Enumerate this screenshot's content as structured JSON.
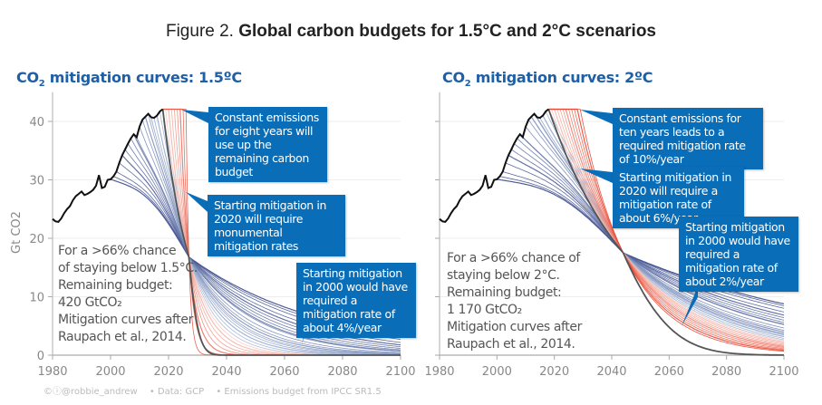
{
  "figure": {
    "title_prefix": "Figure 2. ",
    "title_bold": "Global carbon budgets for 1.5°C and 2°C scenarios"
  },
  "footer": {
    "credit": "©ⓘ@robbie_andrew",
    "data": "•  Data: GCP",
    "budget": "•  Emissions budget from IPCC SR1.5"
  },
  "colors": {
    "historical": "#111111",
    "central": "#555555",
    "early_start": "#3b4a8c",
    "mid_start": "#3a86c8",
    "late_start": "#f08070",
    "callout_bg": "#0a6db8",
    "title_blue": "#1f5fa6"
  },
  "chart_data": [
    {
      "type": "line",
      "title": "CO2 mitigation curves: 1.5°C",
      "title_parts": {
        "pre": "CO",
        "sub": "2",
        "post": " mitigation curves: 1.5ºC"
      },
      "xlabel": "",
      "ylabel": "Gt CO2",
      "xlim": [
        1980,
        2100
      ],
      "ylim": [
        0,
        42
      ],
      "xticks": [
        "1980",
        "2000",
        "2020",
        "2040",
        "2060",
        "2080",
        "2100"
      ],
      "yticks": [
        "0",
        "10",
        "20",
        "30",
        "40"
      ],
      "grid": true,
      "budget_gtco2": 420,
      "historical": {
        "x": [
          1980,
          1981,
          1982,
          1983,
          1984,
          1985,
          1986,
          1987,
          1988,
          1989,
          1990,
          1991,
          1992,
          1993,
          1994,
          1995,
          1996,
          1997,
          1998,
          1999,
          2000,
          2001,
          2002,
          2003,
          2004,
          2005,
          2006,
          2007,
          2008,
          2009,
          2010,
          2011,
          2012,
          2013,
          2014,
          2015,
          2016,
          2017,
          2018
        ],
        "y": [
          23.3,
          22.9,
          22.8,
          23.4,
          24.3,
          25.0,
          25.5,
          26.5,
          27.2,
          27.6,
          28.0,
          27.4,
          27.6,
          27.9,
          28.3,
          29.0,
          30.8,
          28.6,
          28.8,
          30.0,
          30.1,
          30.6,
          31.4,
          32.9,
          34.2,
          35.2,
          36.2,
          37.1,
          37.8,
          37.3,
          39.1,
          40.3,
          40.8,
          41.3,
          40.7,
          40.6,
          41.0,
          41.7,
          42.1
        ]
      },
      "crossing": {
        "year": 2027,
        "value": 16.8
      },
      "callouts": [
        "Constant emissions for eight years will use up the remaining carbon budget",
        "Starting mitigation in 2020 will require monumental mitigation rates",
        "Starting mitigation in 2000 would have required a mitigation rate of about 4%/year"
      ],
      "note": "For a >66% chance\nof staying below 1.5°C.\nRemaining budget:\n420 GtCO₂\nMitigation curves after\nRaupach et al., 2014.",
      "mitigation_start_years": [
        2000,
        2001,
        2002,
        2003,
        2004,
        2005,
        2006,
        2007,
        2008,
        2009,
        2010,
        2011,
        2012,
        2013,
        2014,
        2015,
        2016,
        2017,
        2018,
        2019,
        2020,
        2021,
        2022,
        2023,
        2024,
        2025,
        2026,
        2027
      ]
    },
    {
      "type": "line",
      "title": "CO2 mitigation curves: 2°C",
      "title_parts": {
        "pre": "CO",
        "sub": "2",
        "post": " mitigation curves: 2ºC"
      },
      "xlabel": "",
      "ylabel": "",
      "xlim": [
        1980,
        2100
      ],
      "ylim": [
        0,
        42
      ],
      "xticks": [
        "1980",
        "2000",
        "2020",
        "2040",
        "2060",
        "2080",
        "2100"
      ],
      "yticks": [
        "0",
        "10",
        "20",
        "30",
        "40"
      ],
      "grid": true,
      "budget_gtco2": 1170,
      "crossing": {
        "year": 2044,
        "value": 17.5
      },
      "callouts": [
        "Constant emissions for ten years leads to a required mitigation rate of 10%/year",
        "Starting mitigation in 2020 will require a mitigation rate of about 6%/year",
        "Starting mitigation in 2000 would have required a mitigation rate of about 2%/year"
      ],
      "note": "For a >66% chance of\nstaying below 2°C.\nRemaining budget:\n1 170 GtCO₂\nMitigation curves after\nRaupach et al., 2014.",
      "mitigation_start_years": [
        2000,
        2001,
        2002,
        2003,
        2004,
        2005,
        2006,
        2007,
        2008,
        2009,
        2010,
        2011,
        2012,
        2013,
        2014,
        2015,
        2016,
        2017,
        2018,
        2019,
        2020,
        2021,
        2022,
        2023,
        2024,
        2025,
        2026,
        2027,
        2028,
        2029
      ]
    }
  ]
}
